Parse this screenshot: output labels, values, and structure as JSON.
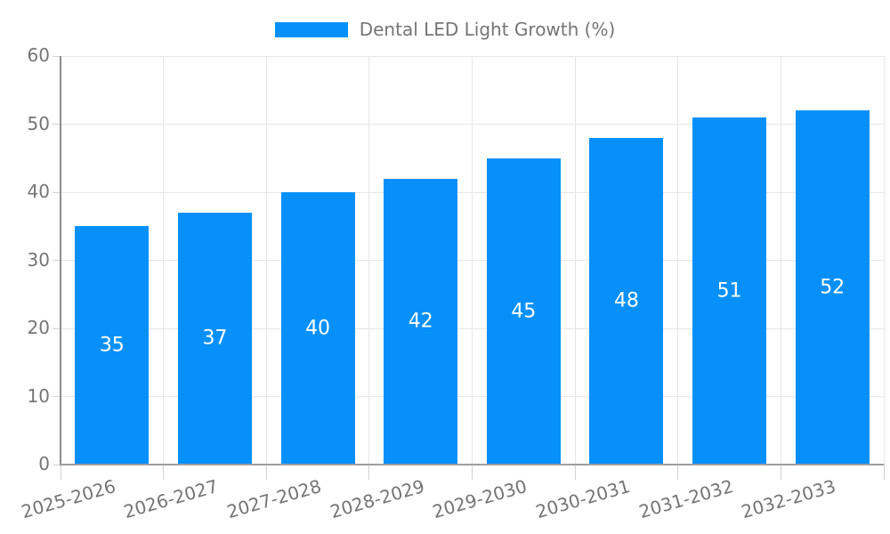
{
  "legend": {
    "label": "Dental LED Light Growth (%)"
  },
  "chart_data": {
    "type": "bar",
    "title": "Dental LED Light Growth (%)",
    "series_name": "Dental LED Light Growth (%)",
    "categories": [
      "2025-2026",
      "2026-2027",
      "2027-2028",
      "2028-2029",
      "2029-2030",
      "2030-2031",
      "2031-2032",
      "2032-2033"
    ],
    "values": [
      35,
      37,
      40,
      42,
      45,
      48,
      51,
      52
    ],
    "value_labels_shown": true,
    "xlabel": "",
    "ylabel": "",
    "ylim": [
      0,
      60
    ],
    "ytick_step": 10,
    "yticks": [
      0,
      10,
      20,
      30,
      40,
      50,
      60
    ],
    "grid": true,
    "legend_position": "top",
    "colors": {
      "bar": "#0890fa",
      "value_label": "#ffffff",
      "axis_text": "#757575",
      "gridline": "#e6e6e6",
      "tick": "#d2d2d2",
      "axis_line": "#9e9e9e",
      "y_axis_line": "#8c8c8c",
      "background": "#ffffff"
    }
  }
}
